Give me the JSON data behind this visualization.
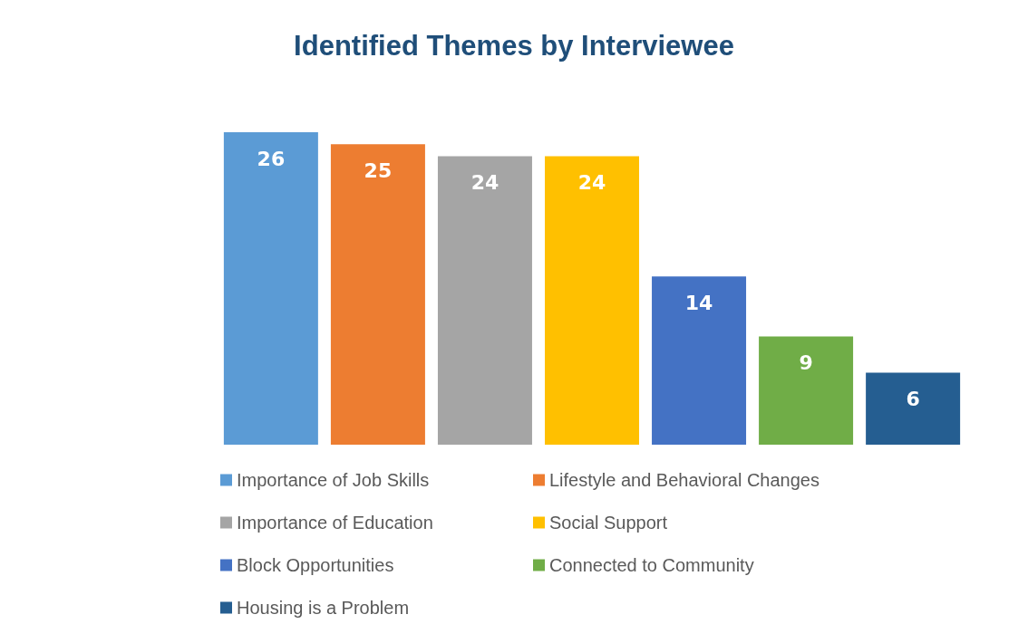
{
  "chart_data": {
    "type": "bar",
    "title": "Identified Themes by Interviewee",
    "categories": [
      null
    ],
    "data_labels": true,
    "legend": "bottom",
    "grid": false,
    "series": [
      {
        "name": "Importance of Job Skills",
        "color": "#5b9bd5",
        "values": [
          26
        ]
      },
      {
        "name": "Lifestyle and Behavioral Changes",
        "color": "#ed7d31",
        "values": [
          25
        ]
      },
      {
        "name": "Importance of Education",
        "color": "#a5a5a5",
        "values": [
          24
        ]
      },
      {
        "name": "Social Support",
        "color": "#ffc000",
        "values": [
          24
        ]
      },
      {
        "name": "Block Opportunities",
        "color": "#4472c4",
        "values": [
          14
        ]
      },
      {
        "name": "Connected to Community",
        "color": "#70ad47",
        "values": [
          9
        ]
      },
      {
        "name": "Housing is a Problem",
        "color": "#255e91",
        "values": [
          6
        ]
      }
    ]
  }
}
